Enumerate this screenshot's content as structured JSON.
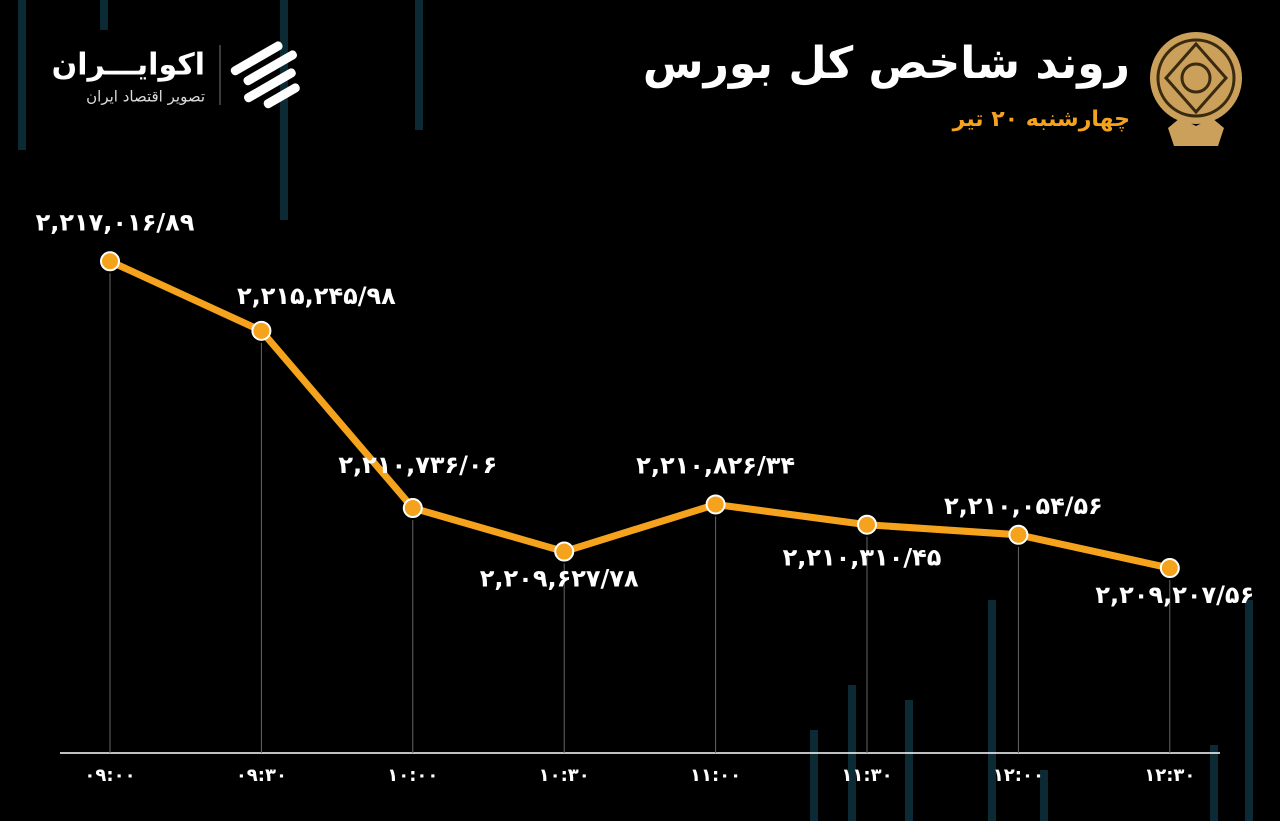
{
  "brand": {
    "name": "اکوایـــران",
    "tagline": "تصویر اقتصاد ایران"
  },
  "chart_data": {
    "type": "line",
    "title": "روند شاخص کل بورس",
    "subtitle": "چهارشنبه ۲۰ تیر",
    "categories": [
      "۰۹:۰۰",
      "۰۹:۳۰",
      "۱۰:۰۰",
      "۱۰:۳۰",
      "۱۱:۰۰",
      "۱۱:۳۰",
      "۱۲:۰۰",
      "۱۲:۳۰"
    ],
    "values": [
      2217016.89,
      2215245.98,
      2210736.06,
      2209627.78,
      2210826.34,
      2210310.45,
      2210054.56,
      2209207.56
    ],
    "value_labels": [
      "۲,۲۱۷,۰۱۶/۸۹",
      "۲,۲۱۵,۲۴۵/۹۸",
      "۲,۲۱۰,۷۳۶/۰۶",
      "۲,۲۰۹,۶۲۷/۷۸",
      "۲,۲۱۰,۸۲۶/۳۴",
      "۲,۲۱۰,۳۱۰/۴۵",
      "۲,۲۱۰,۰۵۴/۵۶",
      "۲,۲۰۹,۲۰۷/۵۶"
    ],
    "color": "#f5a31c",
    "ylim": [
      2204500,
      2218500
    ]
  }
}
